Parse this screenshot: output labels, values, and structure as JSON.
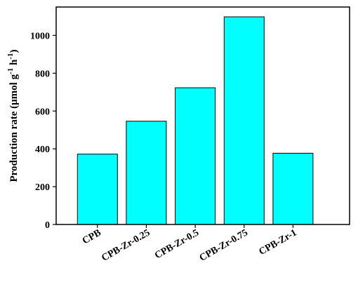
{
  "chart_data": {
    "type": "bar",
    "categories": [
      "CPB",
      "CPB-Zr-0.25",
      "CPB-Zr-0.5",
      "CPB-Zr-0.75",
      "CPB-Zr-1"
    ],
    "values": [
      372,
      546,
      723,
      1098,
      377
    ],
    "title": "",
    "xlabel": "",
    "ylabel": "Production rate (μmol g-1 h-1)",
    "ylim": [
      0,
      1150
    ],
    "yticks": [
      0,
      200,
      400,
      600,
      800,
      1000
    ],
    "grid": false,
    "bar_color": "#00ffff",
    "edge_color": "#000000"
  }
}
